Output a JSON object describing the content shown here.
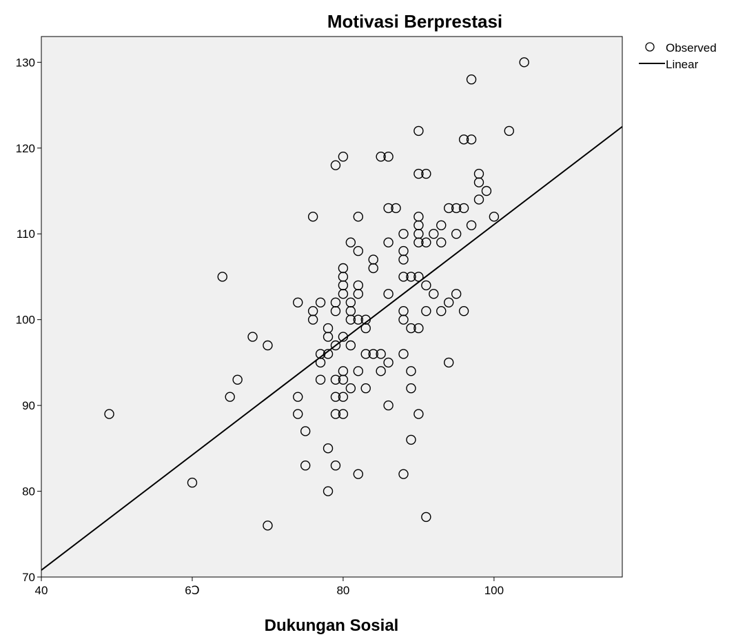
{
  "chart_data": {
    "type": "scatter",
    "title": "Motivasi Berprestasi",
    "xlabel": "Dukungan Sosial",
    "ylabel": "",
    "xlim": [
      40,
      117
    ],
    "ylim": [
      70,
      133
    ],
    "x_ticks": [
      40,
      60,
      80,
      100
    ],
    "x_tick_labels": [
      "40",
      "6Ↄ",
      "80",
      "100"
    ],
    "y_ticks": [
      70,
      80,
      90,
      100,
      110,
      120,
      130
    ],
    "y_tick_labels": [
      "70",
      "80",
      "90",
      "100",
      "110",
      "120",
      "130"
    ],
    "grid": false,
    "legend": {
      "position": "right",
      "entries": [
        "Observed",
        "Linear"
      ]
    },
    "series": [
      {
        "name": "Observed",
        "marker": "open-circle",
        "points": [
          [
            49,
            89
          ],
          [
            60,
            81
          ],
          [
            64,
            105
          ],
          [
            65,
            91
          ],
          [
            66,
            93
          ],
          [
            68,
            98
          ],
          [
            70,
            97
          ],
          [
            70,
            76
          ],
          [
            74,
            102
          ],
          [
            74,
            91
          ],
          [
            74,
            89
          ],
          [
            75,
            87
          ],
          [
            75,
            83
          ],
          [
            76,
            112
          ],
          [
            76,
            101
          ],
          [
            76,
            100
          ],
          [
            77,
            102
          ],
          [
            77,
            96
          ],
          [
            77,
            95
          ],
          [
            77,
            93
          ],
          [
            78,
            99
          ],
          [
            78,
            98
          ],
          [
            78,
            96
          ],
          [
            78,
            85
          ],
          [
            78,
            80
          ],
          [
            79,
            118
          ],
          [
            79,
            102
          ],
          [
            79,
            101
          ],
          [
            79,
            97
          ],
          [
            79,
            93
          ],
          [
            79,
            91
          ],
          [
            79,
            89
          ],
          [
            79,
            83
          ],
          [
            80,
            119
          ],
          [
            80,
            106
          ],
          [
            80,
            105
          ],
          [
            80,
            104
          ],
          [
            80,
            103
          ],
          [
            80,
            98
          ],
          [
            80,
            94
          ],
          [
            80,
            93
          ],
          [
            80,
            91
          ],
          [
            80,
            89
          ],
          [
            81,
            109
          ],
          [
            81,
            102
          ],
          [
            81,
            101
          ],
          [
            81,
            100
          ],
          [
            81,
            97
          ],
          [
            81,
            92
          ],
          [
            82,
            112
          ],
          [
            82,
            108
          ],
          [
            82,
            104
          ],
          [
            82,
            103
          ],
          [
            82,
            100
          ],
          [
            82,
            94
          ],
          [
            82,
            82
          ],
          [
            83,
            100
          ],
          [
            83,
            99
          ],
          [
            83,
            96
          ],
          [
            83,
            92
          ],
          [
            84,
            107
          ],
          [
            84,
            106
          ],
          [
            84,
            96
          ],
          [
            85,
            119
          ],
          [
            85,
            96
          ],
          [
            85,
            94
          ],
          [
            86,
            119
          ],
          [
            86,
            113
          ],
          [
            86,
            109
          ],
          [
            86,
            103
          ],
          [
            86,
            95
          ],
          [
            86,
            90
          ],
          [
            87,
            113
          ],
          [
            88,
            110
          ],
          [
            88,
            108
          ],
          [
            88,
            107
          ],
          [
            88,
            105
          ],
          [
            88,
            101
          ],
          [
            88,
            100
          ],
          [
            88,
            96
          ],
          [
            88,
            82
          ],
          [
            89,
            105
          ],
          [
            89,
            99
          ],
          [
            89,
            94
          ],
          [
            89,
            92
          ],
          [
            89,
            86
          ],
          [
            90,
            122
          ],
          [
            90,
            117
          ],
          [
            90,
            112
          ],
          [
            90,
            111
          ],
          [
            90,
            110
          ],
          [
            90,
            109
          ],
          [
            90,
            105
          ],
          [
            90,
            99
          ],
          [
            90,
            89
          ],
          [
            91,
            117
          ],
          [
            91,
            109
          ],
          [
            91,
            104
          ],
          [
            91,
            101
          ],
          [
            91,
            77
          ],
          [
            92,
            110
          ],
          [
            92,
            103
          ],
          [
            93,
            111
          ],
          [
            93,
            109
          ],
          [
            93,
            101
          ],
          [
            94,
            113
          ],
          [
            94,
            102
          ],
          [
            94,
            95
          ],
          [
            95,
            113
          ],
          [
            95,
            110
          ],
          [
            95,
            103
          ],
          [
            96,
            121
          ],
          [
            96,
            113
          ],
          [
            96,
            101
          ],
          [
            97,
            128
          ],
          [
            97,
            121
          ],
          [
            97,
            111
          ],
          [
            98,
            117
          ],
          [
            98,
            116
          ],
          [
            98,
            114
          ],
          [
            99,
            115
          ],
          [
            100,
            112
          ],
          [
            102,
            122
          ],
          [
            104,
            130
          ]
        ]
      },
      {
        "name": "Linear",
        "type": "line",
        "points": [
          [
            40,
            70.8
          ],
          [
            117,
            122.5
          ]
        ]
      }
    ]
  },
  "colors": {
    "plot_background": "#f0f0f0",
    "marker_stroke": "#000000",
    "line": "#000000"
  }
}
